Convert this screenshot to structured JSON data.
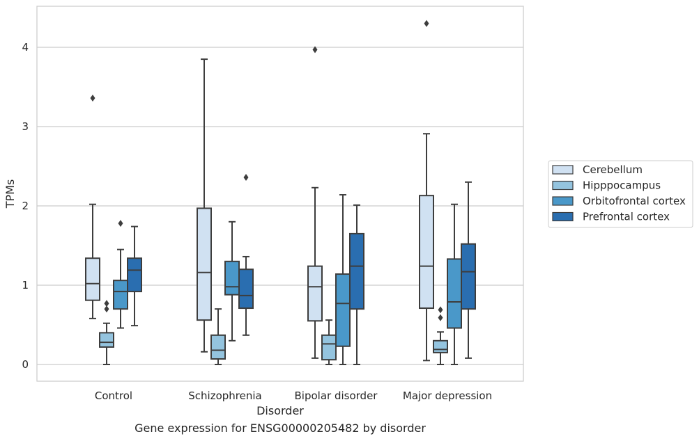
{
  "caption": "Gene expression for ENSG00000205482 by disorder",
  "chart_data": {
    "type": "boxplot",
    "xlabel": "Disorder",
    "ylabel": "TPMs",
    "ylim": [
      -0.2,
      4.52
    ],
    "yticks": [
      0,
      1,
      2,
      3,
      4
    ],
    "grid": "horizontal",
    "legend_position": "right",
    "categories": [
      "Control",
      "Schizophrenia",
      "Bipolar disorder",
      "Major depression"
    ],
    "series": [
      {
        "name": "Cerebellum",
        "color": "#d0e1f2",
        "boxes": [
          {
            "whisker_low": 0.58,
            "q1": 0.81,
            "median": 1.02,
            "q3": 1.34,
            "whisker_high": 2.02,
            "outliers": [
              3.36
            ]
          },
          {
            "whisker_low": 0.16,
            "q1": 0.56,
            "median": 1.16,
            "q3": 1.97,
            "whisker_high": 3.85,
            "outliers": []
          },
          {
            "whisker_low": 0.08,
            "q1": 0.55,
            "median": 0.98,
            "q3": 1.24,
            "whisker_high": 2.23,
            "outliers": [
              3.97
            ]
          },
          {
            "whisker_low": 0.05,
            "q1": 0.71,
            "median": 1.24,
            "q3": 2.13,
            "whisker_high": 2.91,
            "outliers": [
              4.3
            ]
          }
        ]
      },
      {
        "name": "Hipppocampus",
        "color": "#94c4df",
        "boxes": [
          {
            "whisker_low": 0.0,
            "q1": 0.22,
            "median": 0.28,
            "q3": 0.4,
            "whisker_high": 0.52,
            "outliers": [
              0.7,
              0.77
            ]
          },
          {
            "whisker_low": 0.0,
            "q1": 0.07,
            "median": 0.18,
            "q3": 0.37,
            "whisker_high": 0.7,
            "outliers": []
          },
          {
            "whisker_low": 0.0,
            "q1": 0.06,
            "median": 0.26,
            "q3": 0.37,
            "whisker_high": 0.56,
            "outliers": []
          },
          {
            "whisker_low": 0.0,
            "q1": 0.15,
            "median": 0.19,
            "q3": 0.3,
            "whisker_high": 0.41,
            "outliers": [
              0.59,
              0.69
            ]
          }
        ]
      },
      {
        "name": "Orbitofrontal cortex",
        "color": "#4a98c9",
        "boxes": [
          {
            "whisker_low": 0.46,
            "q1": 0.7,
            "median": 0.92,
            "q3": 1.06,
            "whisker_high": 1.45,
            "outliers": [
              1.78
            ]
          },
          {
            "whisker_low": 0.3,
            "q1": 0.88,
            "median": 0.98,
            "q3": 1.3,
            "whisker_high": 1.8,
            "outliers": []
          },
          {
            "whisker_low": 0.0,
            "q1": 0.23,
            "median": 0.77,
            "q3": 1.14,
            "whisker_high": 2.14,
            "outliers": []
          },
          {
            "whisker_low": 0.0,
            "q1": 0.46,
            "median": 0.79,
            "q3": 1.33,
            "whisker_high": 2.02,
            "outliers": []
          }
        ]
      },
      {
        "name": "Prefrontal cortex",
        "color": "#2a6eb0",
        "boxes": [
          {
            "whisker_low": 0.49,
            "q1": 0.92,
            "median": 1.19,
            "q3": 1.34,
            "whisker_high": 1.74,
            "outliers": []
          },
          {
            "whisker_low": 0.37,
            "q1": 0.71,
            "median": 0.87,
            "q3": 1.2,
            "whisker_high": 1.36,
            "outliers": [
              2.36
            ]
          },
          {
            "whisker_low": 0.0,
            "q1": 0.7,
            "median": 1.24,
            "q3": 1.65,
            "whisker_high": 2.01,
            "outliers": []
          },
          {
            "whisker_low": 0.08,
            "q1": 0.7,
            "median": 1.17,
            "q3": 1.52,
            "whisker_high": 2.3,
            "outliers": []
          }
        ]
      }
    ]
  }
}
